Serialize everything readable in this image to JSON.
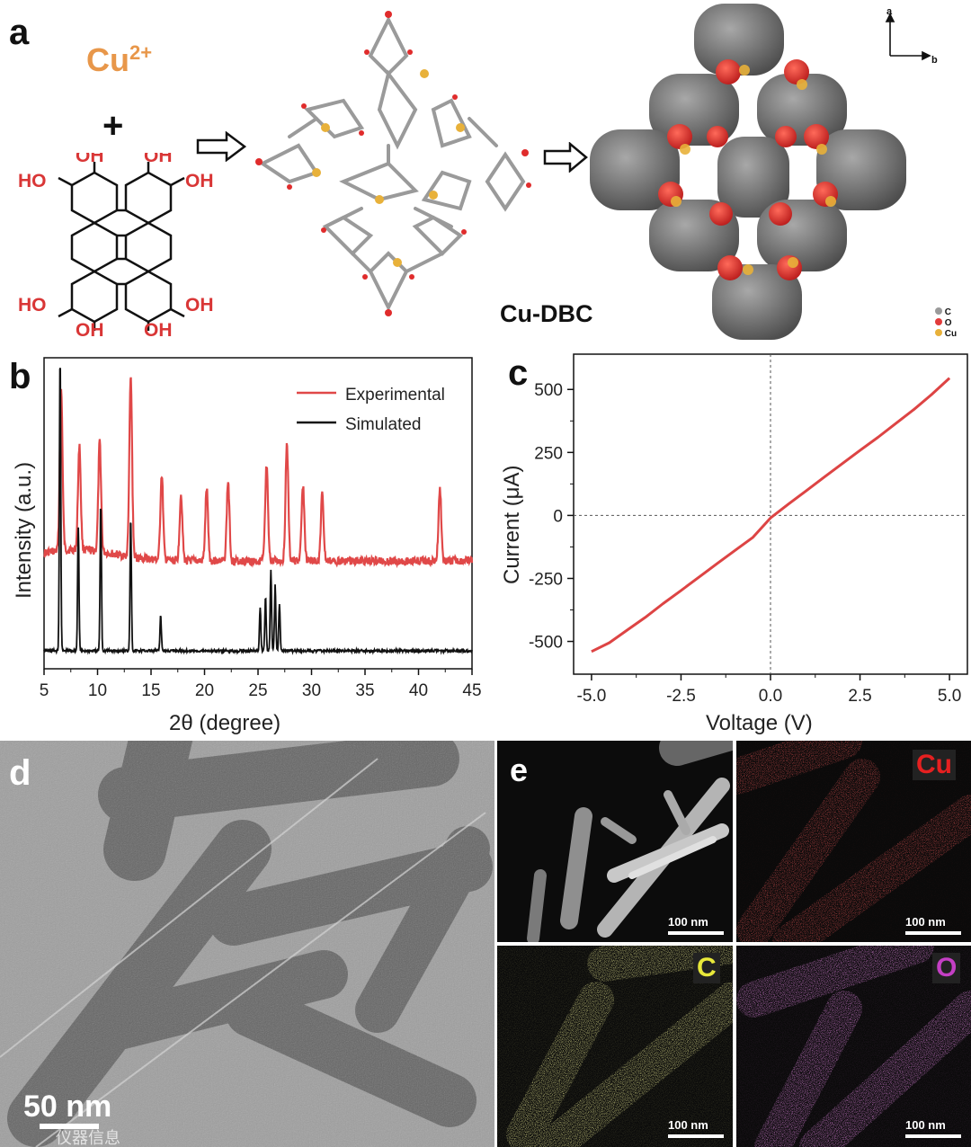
{
  "panels": {
    "a": {
      "letter": "a",
      "metal_ion": "Cu",
      "metal_charge": "2+",
      "plus": "+",
      "ligand_oh": [
        "OH",
        "OH",
        "HO",
        "OH",
        "HO",
        "OH",
        "OH",
        "OH"
      ],
      "product_label": "Cu-DBC",
      "axes": {
        "a": "a",
        "b": "b"
      },
      "legend": [
        {
          "label": "C",
          "color": "#9a9a9a"
        },
        {
          "label": "O",
          "color": "#e23b3b"
        },
        {
          "label": "Cu",
          "color": "#e8b13a"
        }
      ]
    },
    "b": {
      "letter": "b"
    },
    "c": {
      "letter": "c"
    },
    "d": {
      "letter": "d",
      "scale_bar": "50 nm",
      "watermark": "仪器信息"
    },
    "e": {
      "letter": "e",
      "maps": [
        {
          "element": "",
          "scale_bar": "100 nm",
          "color": "#bfbfbf"
        },
        {
          "element": "Cu",
          "scale_bar": "100 nm",
          "color": "#e52020"
        },
        {
          "element": "C",
          "scale_bar": "100 nm",
          "color": "#d8d84a"
        },
        {
          "element": "O",
          "scale_bar": "100 nm",
          "color": "#c43fc4"
        }
      ]
    }
  },
  "chart_data": [
    {
      "type": "line",
      "panel": "b",
      "xlabel": "2θ (degree)",
      "ylabel": "Intensity (a.u.)",
      "xlim": [
        5,
        45
      ],
      "xticks": [
        "5",
        "10",
        "15",
        "20",
        "25",
        "30",
        "35",
        "40",
        "45"
      ],
      "legend_position": "top-right",
      "series": [
        {
          "name": "Experimental",
          "color": "#e04848",
          "peaks": [
            [
              6.6,
              0.85
            ],
            [
              8.3,
              0.55
            ],
            [
              10.2,
              0.58
            ],
            [
              13.1,
              0.95
            ],
            [
              16.0,
              0.45
            ],
            [
              17.8,
              0.35
            ],
            [
              20.2,
              0.38
            ],
            [
              22.2,
              0.42
            ],
            [
              25.8,
              0.5
            ],
            [
              27.7,
              0.62
            ],
            [
              29.2,
              0.4
            ],
            [
              31.0,
              0.35
            ],
            [
              42.0,
              0.38
            ]
          ]
        },
        {
          "name": "Simulated",
          "color": "#111111",
          "peaks": [
            [
              6.5,
              1.0
            ],
            [
              8.2,
              0.42
            ],
            [
              10.3,
              0.5
            ],
            [
              13.1,
              0.45
            ],
            [
              15.9,
              0.12
            ],
            [
              25.2,
              0.15
            ],
            [
              25.7,
              0.18
            ],
            [
              26.2,
              0.27
            ],
            [
              26.6,
              0.22
            ],
            [
              27.0,
              0.16
            ]
          ]
        }
      ]
    },
    {
      "type": "line",
      "panel": "c",
      "xlabel": "Voltage (V)",
      "ylabel": "Current (μA)",
      "xlim": [
        -5.5,
        5.5
      ],
      "ylim": [
        -630,
        640
      ],
      "xticks": [
        "-5.0",
        "-2.5",
        "0.0",
        "2.5",
        "5.0"
      ],
      "yticks": [
        "-500",
        "-250",
        "0",
        "250",
        "500"
      ],
      "series": [
        {
          "name": "",
          "color": "#dd4444",
          "x": [
            -5.0,
            -4.5,
            -4.0,
            -3.5,
            -3.0,
            -2.5,
            -2.0,
            -1.5,
            -1.0,
            -0.5,
            0.0,
            0.5,
            1.0,
            1.5,
            2.0,
            2.5,
            3.0,
            3.5,
            4.0,
            4.5,
            5.0
          ],
          "y": [
            -540,
            -505,
            -455,
            -405,
            -350,
            -298,
            -245,
            -192,
            -140,
            -88,
            -10,
            45,
            98,
            152,
            205,
            258,
            310,
            365,
            420,
            480,
            545
          ]
        }
      ]
    }
  ]
}
